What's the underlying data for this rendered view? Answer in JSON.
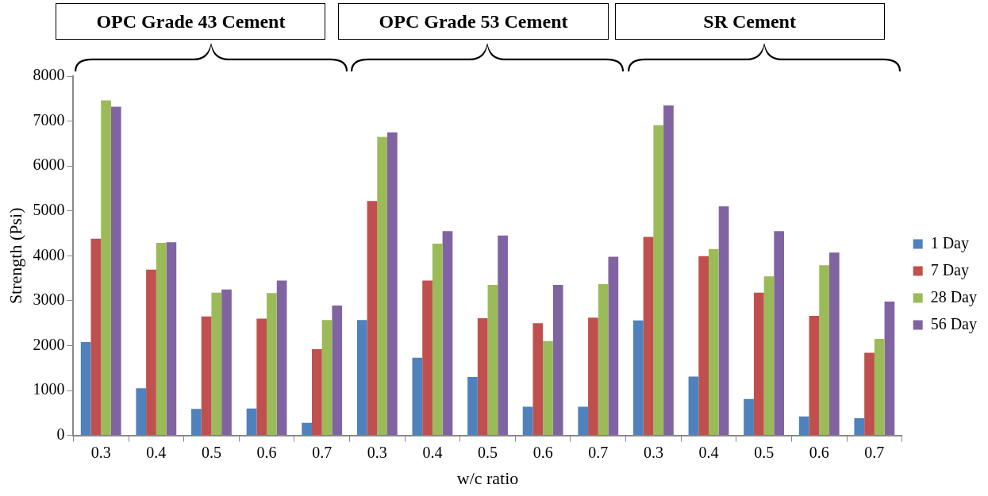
{
  "chart_data": {
    "type": "bar",
    "xlabel": "w/c ratio",
    "ylabel": "Strength (Psi)",
    "categories": [
      "0.3",
      "0.4",
      "0.5",
      "0.6",
      "0.7",
      "0.3",
      "0.4",
      "0.5",
      "0.6",
      "0.7",
      "0.3",
      "0.4",
      "0.5",
      "0.6",
      "0.7"
    ],
    "series": [
      {
        "name": "1 Day",
        "color": "#4f81bd",
        "values": [
          2080,
          1050,
          590,
          600,
          280,
          2570,
          1730,
          1300,
          640,
          640,
          2560,
          1310,
          810,
          420,
          380
        ]
      },
      {
        "name": "7 Day",
        "color": "#c0504d",
        "values": [
          4380,
          3690,
          2650,
          2600,
          1920,
          5220,
          3450,
          2610,
          2500,
          2620,
          4420,
          3990,
          3180,
          2660,
          1840
        ]
      },
      {
        "name": "28 Day",
        "color": "#9bbb59",
        "values": [
          7460,
          4290,
          3180,
          3170,
          2570,
          6650,
          4270,
          3350,
          2100,
          3370,
          6910,
          4150,
          3540,
          3790,
          2150
        ]
      },
      {
        "name": "56 Day",
        "color": "#8064a2",
        "values": [
          7320,
          4300,
          3250,
          3450,
          2890,
          6750,
          4550,
          4450,
          3350,
          3980,
          7350,
          5100,
          4550,
          4070,
          2980
        ]
      }
    ],
    "ylim": [
      0,
      8000
    ],
    "yticks": [
      0,
      1000,
      2000,
      3000,
      4000,
      5000,
      6000,
      7000,
      8000
    ],
    "legend": "right",
    "annotations": [
      "OPC Grade 43 Cement",
      "OPC Grade 53 Cement",
      "SR Cement"
    ]
  }
}
